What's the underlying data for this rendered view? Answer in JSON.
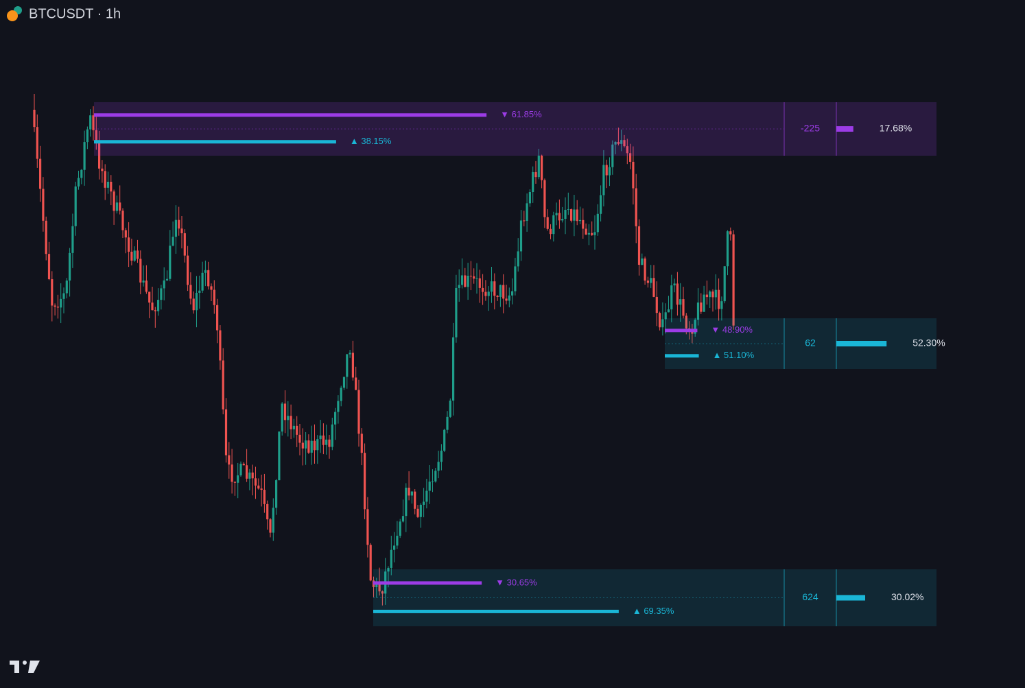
{
  "header": {
    "title": "BTCUSDT · 1h"
  },
  "zones": [
    {
      "sell": {
        "value": 61.85,
        "label": "▼ 61.85%"
      },
      "buy": {
        "value": 38.15,
        "label": "▲ 38.15%"
      },
      "delta": -225,
      "strength": {
        "value": 17.68,
        "label": "17.68%"
      }
    },
    {
      "sell": {
        "value": 48.9,
        "label": "▼ 48.90%"
      },
      "buy": {
        "value": 51.1,
        "label": "▲ 51.10%"
      },
      "delta": 62,
      "strength": {
        "value": 52.3,
        "label": "52.30%"
      }
    },
    {
      "sell": {
        "value": 30.65,
        "label": "▼ 30.65%"
      },
      "buy": {
        "value": 69.35,
        "label": "▲ 69.35%"
      },
      "delta": 624,
      "strength": {
        "value": 30.02,
        "label": "30.02%"
      }
    }
  ]
}
